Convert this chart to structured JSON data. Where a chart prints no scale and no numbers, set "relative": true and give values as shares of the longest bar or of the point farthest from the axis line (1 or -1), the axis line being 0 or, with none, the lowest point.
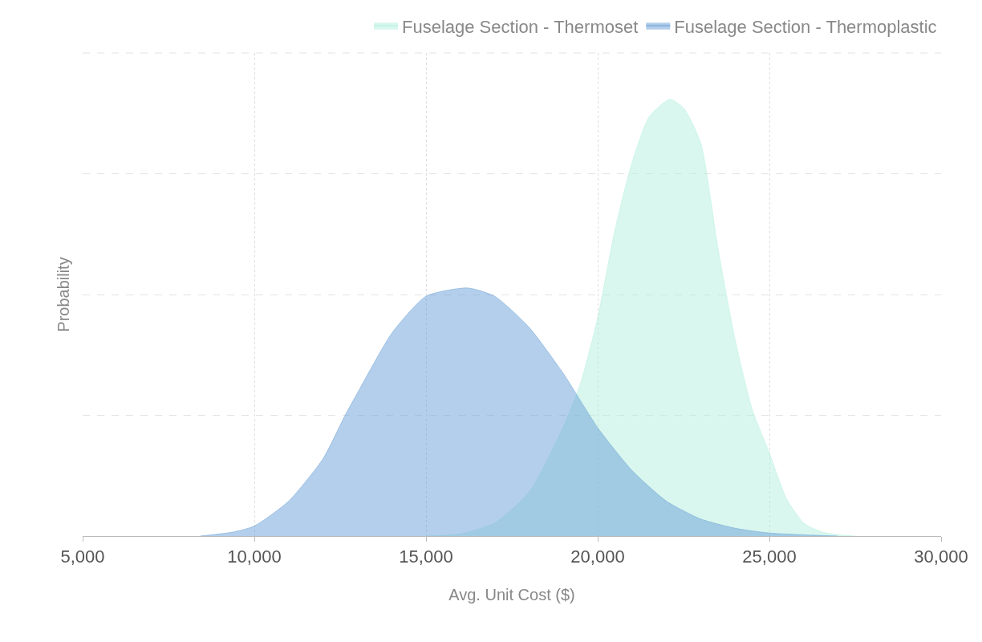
{
  "chart_data": {
    "type": "area",
    "relative": true,
    "xlabel": "Avg. Unit Cost ($)",
    "ylabel": "Probability",
    "xlim": [
      5000,
      30000
    ],
    "xticks": [
      {
        "value": 5000,
        "label": "5,000"
      },
      {
        "value": 10000,
        "label": "10,000"
      },
      {
        "value": 15000,
        "label": "15,000"
      },
      {
        "value": 20000,
        "label": "20,000"
      },
      {
        "value": 25000,
        "label": "25,000"
      },
      {
        "value": 30000,
        "label": "30,000"
      }
    ],
    "grid": true,
    "legend": "top right",
    "series": [
      {
        "name": "Fuselage Section - Thermoset",
        "color": "#b3f0dd",
        "x": [
          15000,
          16000,
          17000,
          18000,
          19000,
          19500,
          20000,
          20500,
          21000,
          21500,
          22100,
          22500,
          23000,
          23500,
          24000,
          24500,
          25000,
          25500,
          26000,
          26500,
          27000,
          27500
        ],
        "values": [
          0,
          0.005,
          0.03,
          0.1,
          0.25,
          0.35,
          0.5,
          0.7,
          0.855,
          0.96,
          1,
          0.98,
          0.9,
          0.66,
          0.45,
          0.29,
          0.19,
          0.085,
          0.03,
          0.01,
          0.003,
          0
        ]
      },
      {
        "name": "Fuselage Section - Thermoplastic",
        "color": "#6a9fd8",
        "x": [
          8420,
          9370,
          10000,
          11000,
          12000,
          12640,
          13000,
          14000,
          15000,
          16200,
          17000,
          18000,
          19000,
          20000,
          21000,
          22000,
          23000,
          24000,
          25000,
          27000
        ],
        "values": [
          0,
          0.009,
          0.023,
          0.08,
          0.177,
          0.276,
          0.327,
          0.464,
          0.549,
          0.568,
          0.549,
          0.478,
          0.372,
          0.248,
          0.15,
          0.08,
          0.039,
          0.018,
          0.007,
          0
        ]
      }
    ]
  }
}
